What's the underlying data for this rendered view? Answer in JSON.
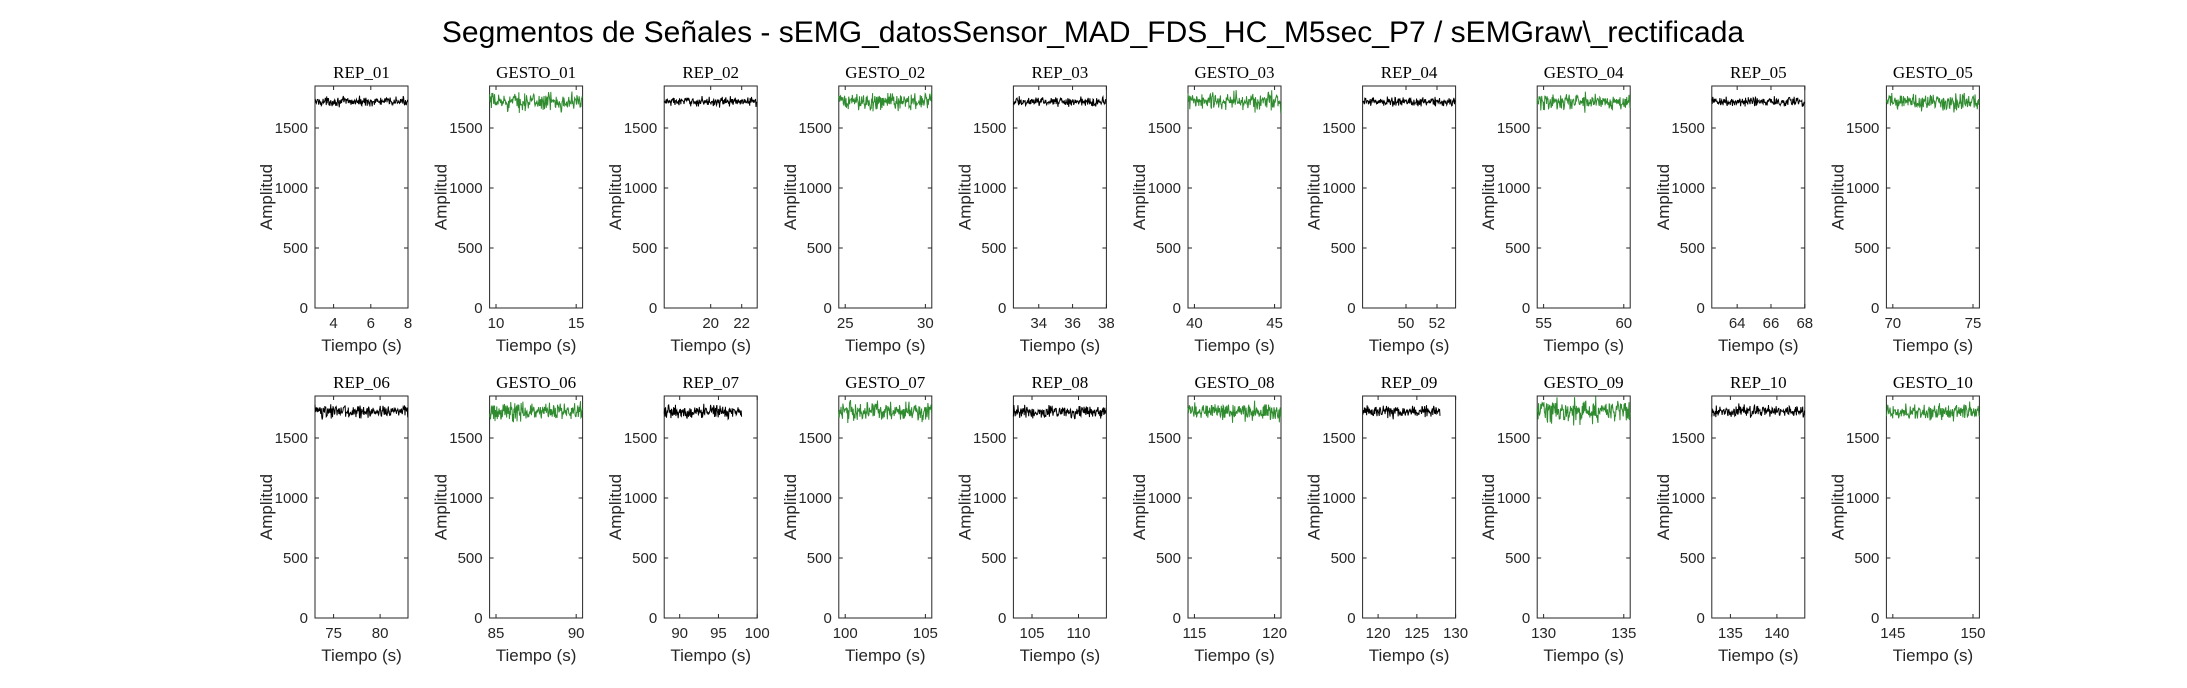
{
  "figure": {
    "title": "Segmentos de Señales - sEMG_datosSensor_MAD_FDS_HC_M5sec_P7 / sEMGraw\\_rectificada"
  },
  "colors": {
    "rep": "#000000",
    "gesto": "#2e8b2e"
  },
  "chart_data": [
    {
      "type": "line",
      "title": "REP_01",
      "xlabel": "Tiempo (s)",
      "ylabel": "Amplitud",
      "xlim": [
        3,
        8
      ],
      "ylim": [
        0,
        1850
      ],
      "xticks": [
        4,
        6,
        8
      ],
      "yticks": [
        0,
        500,
        1000,
        1500
      ],
      "signal": {
        "kind": "rep",
        "x_range": [
          3,
          8
        ],
        "mean": 1720,
        "noise": 18
      }
    },
    {
      "type": "line",
      "title": "GESTO_01",
      "xlabel": "Tiempo (s)",
      "ylabel": "Amplitud",
      "xlim": [
        9.6,
        15.4
      ],
      "ylim": [
        0,
        1850
      ],
      "xticks": [
        10,
        15
      ],
      "yticks": [
        0,
        500,
        1000,
        1500
      ],
      "signal": {
        "kind": "gesto",
        "x_range": [
          9.6,
          15.4
        ],
        "mean": 1720,
        "noise": 35
      }
    },
    {
      "type": "line",
      "title": "REP_02",
      "xlabel": "Tiempo (s)",
      "ylabel": "Amplitud",
      "xlim": [
        17,
        23
      ],
      "ylim": [
        0,
        1850
      ],
      "xticks": [
        20,
        22
      ],
      "yticks": [
        0,
        500,
        1000,
        1500
      ],
      "signal": {
        "kind": "rep",
        "x_range": [
          17,
          23
        ],
        "mean": 1720,
        "noise": 18
      }
    },
    {
      "type": "line",
      "title": "GESTO_02",
      "xlabel": "Tiempo (s)",
      "ylabel": "Amplitud",
      "xlim": [
        24.6,
        30.4
      ],
      "ylim": [
        0,
        1850
      ],
      "xticks": [
        25,
        30
      ],
      "yticks": [
        0,
        500,
        1000,
        1500
      ],
      "signal": {
        "kind": "gesto",
        "x_range": [
          24.6,
          30.4
        ],
        "mean": 1720,
        "noise": 35
      }
    },
    {
      "type": "line",
      "title": "REP_03",
      "xlabel": "Tiempo (s)",
      "ylabel": "Amplitud",
      "xlim": [
        32.5,
        38
      ],
      "ylim": [
        0,
        1850
      ],
      "xticks": [
        34,
        36,
        38
      ],
      "yticks": [
        0,
        500,
        1000,
        1500
      ],
      "signal": {
        "kind": "rep",
        "x_range": [
          32.5,
          38
        ],
        "mean": 1720,
        "noise": 18
      }
    },
    {
      "type": "line",
      "title": "GESTO_03",
      "xlabel": "Tiempo (s)",
      "ylabel": "Amplitud",
      "xlim": [
        39.6,
        45.4
      ],
      "ylim": [
        0,
        1850
      ],
      "xticks": [
        40,
        45
      ],
      "yticks": [
        0,
        500,
        1000,
        1500
      ],
      "signal": {
        "kind": "gesto",
        "x_range": [
          39.6,
          45.4
        ],
        "mean": 1720,
        "noise": 38
      }
    },
    {
      "type": "line",
      "title": "REP_04",
      "xlabel": "Tiempo (s)",
      "ylabel": "Amplitud",
      "xlim": [
        47.2,
        53.2
      ],
      "ylim": [
        0,
        1850
      ],
      "xticks": [
        50,
        52
      ],
      "yticks": [
        0,
        500,
        1000,
        1500
      ],
      "signal": {
        "kind": "rep",
        "x_range": [
          47.2,
          53.2
        ],
        "mean": 1720,
        "noise": 18
      }
    },
    {
      "type": "line",
      "title": "GESTO_04",
      "xlabel": "Tiempo (s)",
      "ylabel": "Amplitud",
      "xlim": [
        54.6,
        60.4
      ],
      "ylim": [
        0,
        1850
      ],
      "xticks": [
        55,
        60
      ],
      "yticks": [
        0,
        500,
        1000,
        1500
      ],
      "signal": {
        "kind": "gesto",
        "x_range": [
          54.6,
          60.4
        ],
        "mean": 1720,
        "noise": 35
      }
    },
    {
      "type": "line",
      "title": "REP_05",
      "xlabel": "Tiempo (s)",
      "ylabel": "Amplitud",
      "xlim": [
        62.5,
        68
      ],
      "ylim": [
        0,
        1850
      ],
      "xticks": [
        64,
        66,
        68
      ],
      "yticks": [
        0,
        500,
        1000,
        1500
      ],
      "signal": {
        "kind": "rep",
        "x_range": [
          62.5,
          68
        ],
        "mean": 1720,
        "noise": 18
      }
    },
    {
      "type": "line",
      "title": "GESTO_05",
      "xlabel": "Tiempo (s)",
      "ylabel": "Amplitud",
      "xlim": [
        69.6,
        75.4
      ],
      "ylim": [
        0,
        1850
      ],
      "xticks": [
        70,
        75
      ],
      "yticks": [
        0,
        500,
        1000,
        1500
      ],
      "signal": {
        "kind": "gesto",
        "x_range": [
          69.6,
          75.4
        ],
        "mean": 1720,
        "noise": 35
      }
    },
    {
      "type": "line",
      "title": "REP_06",
      "xlabel": "Tiempo (s)",
      "ylabel": "Amplitud",
      "xlim": [
        73,
        83
      ],
      "ylim": [
        0,
        1850
      ],
      "xticks": [
        75,
        80
      ],
      "yticks": [
        0,
        500,
        1000,
        1500
      ],
      "signal": {
        "kind": "rep",
        "x_range": [
          73,
          83
        ],
        "mean": 1720,
        "noise": 25
      }
    },
    {
      "type": "line",
      "title": "GESTO_06",
      "xlabel": "Tiempo (s)",
      "ylabel": "Amplitud",
      "xlim": [
        84.6,
        90.4
      ],
      "ylim": [
        0,
        1850
      ],
      "xticks": [
        85,
        90
      ],
      "yticks": [
        0,
        500,
        1000,
        1500
      ],
      "signal": {
        "kind": "gesto",
        "x_range": [
          84.6,
          90.4
        ],
        "mean": 1720,
        "noise": 38
      }
    },
    {
      "type": "line",
      "title": "REP_07",
      "xlabel": "Tiempo (s)",
      "ylabel": "Amplitud",
      "xlim": [
        88,
        100
      ],
      "ylim": [
        0,
        1850
      ],
      "xticks": [
        90,
        95,
        100
      ],
      "yticks": [
        0,
        500,
        1000,
        1500
      ],
      "signal": {
        "kind": "rep",
        "x_range": [
          88,
          98
        ],
        "mean": 1720,
        "noise": 25
      }
    },
    {
      "type": "line",
      "title": "GESTO_07",
      "xlabel": "Tiempo (s)",
      "ylabel": "Amplitud",
      "xlim": [
        99.6,
        105.4
      ],
      "ylim": [
        0,
        1850
      ],
      "xticks": [
        100,
        105
      ],
      "yticks": [
        0,
        500,
        1000,
        1500
      ],
      "signal": {
        "kind": "gesto",
        "x_range": [
          99.6,
          105.4
        ],
        "mean": 1720,
        "noise": 38
      }
    },
    {
      "type": "line",
      "title": "REP_08",
      "xlabel": "Tiempo (s)",
      "ylabel": "Amplitud",
      "xlim": [
        103,
        113
      ],
      "ylim": [
        0,
        1850
      ],
      "xticks": [
        105,
        110
      ],
      "yticks": [
        0,
        500,
        1000,
        1500
      ],
      "signal": {
        "kind": "rep",
        "x_range": [
          103,
          113
        ],
        "mean": 1720,
        "noise": 25
      }
    },
    {
      "type": "line",
      "title": "GESTO_08",
      "xlabel": "Tiempo (s)",
      "ylabel": "Amplitud",
      "xlim": [
        114.6,
        120.4
      ],
      "ylim": [
        0,
        1850
      ],
      "xticks": [
        115,
        120
      ],
      "yticks": [
        0,
        500,
        1000,
        1500
      ],
      "signal": {
        "kind": "gesto",
        "x_range": [
          114.6,
          120.4
        ],
        "mean": 1720,
        "noise": 35
      }
    },
    {
      "type": "line",
      "title": "REP_09",
      "xlabel": "Tiempo (s)",
      "ylabel": "Amplitud",
      "xlim": [
        118,
        130
      ],
      "ylim": [
        0,
        1850
      ],
      "xticks": [
        120,
        125,
        130
      ],
      "yticks": [
        0,
        500,
        1000,
        1500
      ],
      "signal": {
        "kind": "rep",
        "x_range": [
          118,
          128
        ],
        "mean": 1720,
        "noise": 25
      }
    },
    {
      "type": "line",
      "title": "GESTO_09",
      "xlabel": "Tiempo (s)",
      "ylabel": "Amplitud",
      "xlim": [
        129.6,
        135.4
      ],
      "ylim": [
        0,
        1850
      ],
      "xticks": [
        130,
        135
      ],
      "yticks": [
        0,
        500,
        1000,
        1500
      ],
      "signal": {
        "kind": "gesto",
        "x_range": [
          129.6,
          135.4
        ],
        "mean": 1720,
        "noise": 45
      }
    },
    {
      "type": "line",
      "title": "REP_10",
      "xlabel": "Tiempo (s)",
      "ylabel": "Amplitud",
      "xlim": [
        133,
        143
      ],
      "ylim": [
        0,
        1850
      ],
      "xticks": [
        135,
        140
      ],
      "yticks": [
        0,
        500,
        1000,
        1500
      ],
      "signal": {
        "kind": "rep",
        "x_range": [
          133,
          143
        ],
        "mean": 1720,
        "noise": 25
      }
    },
    {
      "type": "line",
      "title": "GESTO_10",
      "xlabel": "Tiempo (s)",
      "ylabel": "Amplitud",
      "xlim": [
        144.6,
        150.4
      ],
      "ylim": [
        0,
        1850
      ],
      "xticks": [
        145,
        150
      ],
      "yticks": [
        0,
        500,
        1000,
        1500
      ],
      "signal": {
        "kind": "gesto",
        "x_range": [
          144.6,
          150.4
        ],
        "mean": 1720,
        "noise": 35
      }
    }
  ]
}
